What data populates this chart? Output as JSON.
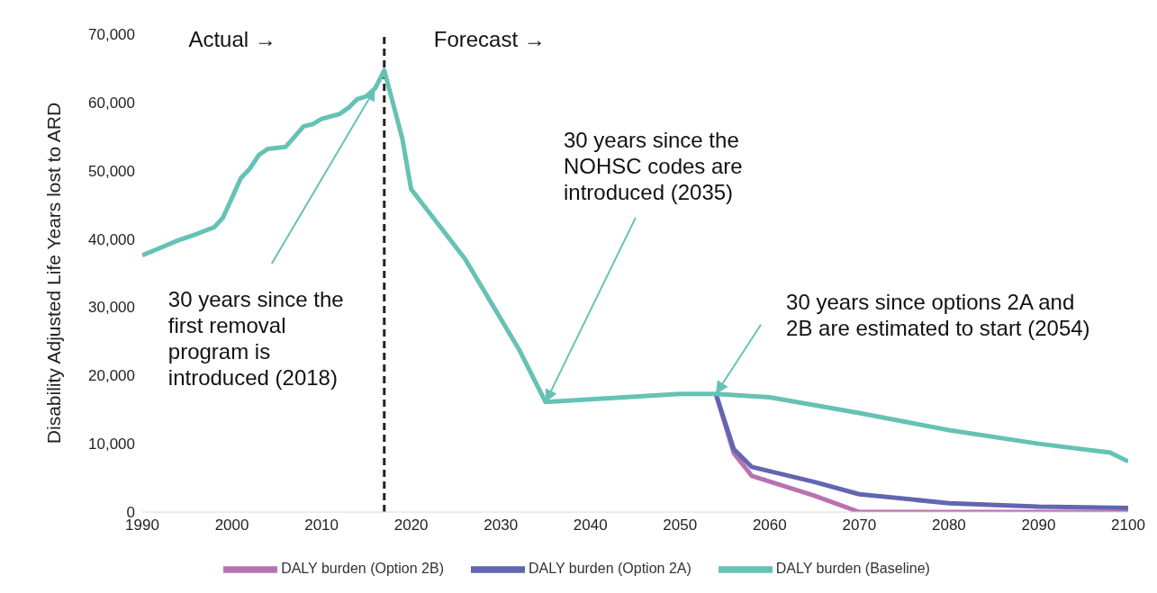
{
  "chart_data": {
    "type": "line",
    "ylabel": "Disability Adjusted Life Years lost to ARD",
    "xlim": [
      1990,
      2100
    ],
    "xticks": [
      1990,
      2000,
      2010,
      2020,
      2030,
      2040,
      2050,
      2060,
      2070,
      2080,
      2090,
      2100
    ],
    "ylim": [
      0,
      70000
    ],
    "yticks": [
      {
        "value": 0,
        "label": "0"
      },
      {
        "value": 10000,
        "label": "10,000"
      },
      {
        "value": 20000,
        "label": "20,000"
      },
      {
        "value": 30000,
        "label": "30,000"
      },
      {
        "value": 40000,
        "label": "40,000"
      },
      {
        "value": 50000,
        "label": "50,000"
      },
      {
        "value": 60000,
        "label": "60,000"
      },
      {
        "value": 70000,
        "label": "70,000"
      }
    ],
    "grid": false,
    "legend": "bottom",
    "marker": "none",
    "line_style": "solid",
    "series": [
      {
        "name": "DALY burden (Option 2B)",
        "color": "#b872b0",
        "x": [
          2054,
          2056,
          2058,
          2065,
          2070,
          2080,
          2090,
          2100
        ],
        "values": [
          17300,
          8600,
          5300,
          2400,
          0,
          0,
          0,
          0
        ]
      },
      {
        "name": "DALY burden (Option 2A)",
        "color": "#6266b0",
        "x": [
          2054,
          2056,
          2058,
          2065,
          2070,
          2080,
          2090,
          2100
        ],
        "values": [
          17300,
          9200,
          6600,
          4400,
          2600,
          1300,
          800,
          600
        ]
      },
      {
        "name": "DALY burden (Baseline)",
        "color": "#66c2b4",
        "x": [
          1990,
          1992,
          1994,
          1996,
          1998,
          1999,
          2001,
          2002,
          2003,
          2004,
          2006,
          2007,
          2008,
          2009,
          2010,
          2012,
          2013,
          2014,
          2015,
          2016,
          2017,
          2019,
          2020,
          2026,
          2029,
          2032,
          2035,
          2050,
          2054,
          2060,
          2070,
          2080,
          2090,
          2098,
          2100
        ],
        "values": [
          37600,
          38700,
          39800,
          40700,
          41700,
          43100,
          48900,
          50300,
          52300,
          53200,
          53500,
          55000,
          56500,
          56800,
          57600,
          58300,
          59200,
          60500,
          60900,
          62100,
          64700,
          54800,
          47300,
          37100,
          30500,
          23900,
          16100,
          17300,
          17300,
          16800,
          14500,
          12000,
          10000,
          8700,
          7400
        ]
      }
    ],
    "ref_lines": [
      {
        "axis": "x",
        "value": 2017,
        "color": "#222222",
        "line_style": "dashed"
      }
    ],
    "annotations": [
      "Actual →",
      "Forecast →",
      {
        "text": "30 years since the first removal program is introduced (2018)",
        "x": 2016,
        "y": 62100
      },
      {
        "text": "30 years since the NOHSC codes are introduced (2035)",
        "x": 2035,
        "y": 16100
      },
      {
        "text": "30 years since options 2A and 2B are estimated to start (2054)",
        "x": 2054,
        "y": 17300
      }
    ]
  }
}
